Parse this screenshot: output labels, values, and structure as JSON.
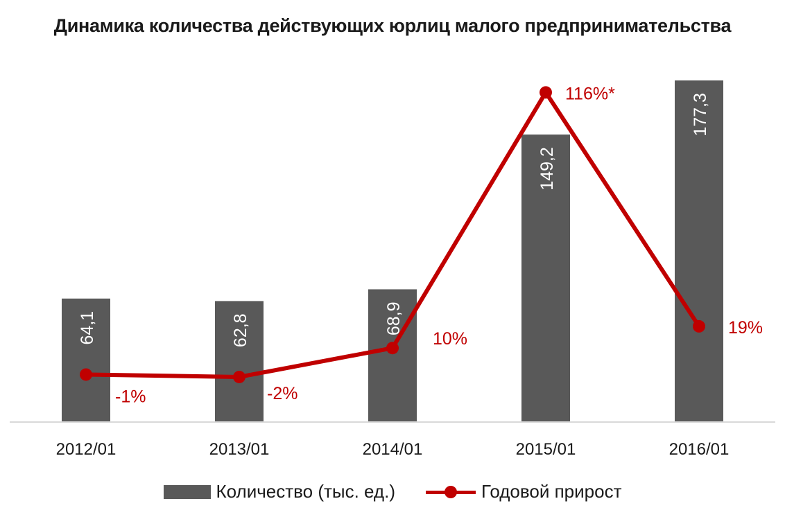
{
  "chart_data": {
    "type": "bar",
    "title": "Динамика количества действующих юрлиц малого  предпринимательства",
    "categories": [
      "2012/01",
      "2013/01",
      "2014/01",
      "2015/01",
      "2016/01"
    ],
    "series": [
      {
        "name": "Количество (тыс. ед.)",
        "type": "bar",
        "values": [
          64.1,
          62.8,
          68.9,
          149.2,
          177.3
        ],
        "labels": [
          "64,1",
          "62,8",
          "68,9",
          "149,2",
          "177,3"
        ],
        "color": "#595959"
      },
      {
        "name": "Годовой прирост",
        "type": "line",
        "values": [
          -1,
          -2,
          10,
          116,
          19
        ],
        "labels": [
          "-1%",
          "-2%",
          "10%",
          "116%*",
          "19%"
        ],
        "color": "#c00000"
      }
    ],
    "legend_position": "bottom",
    "grid": false
  }
}
